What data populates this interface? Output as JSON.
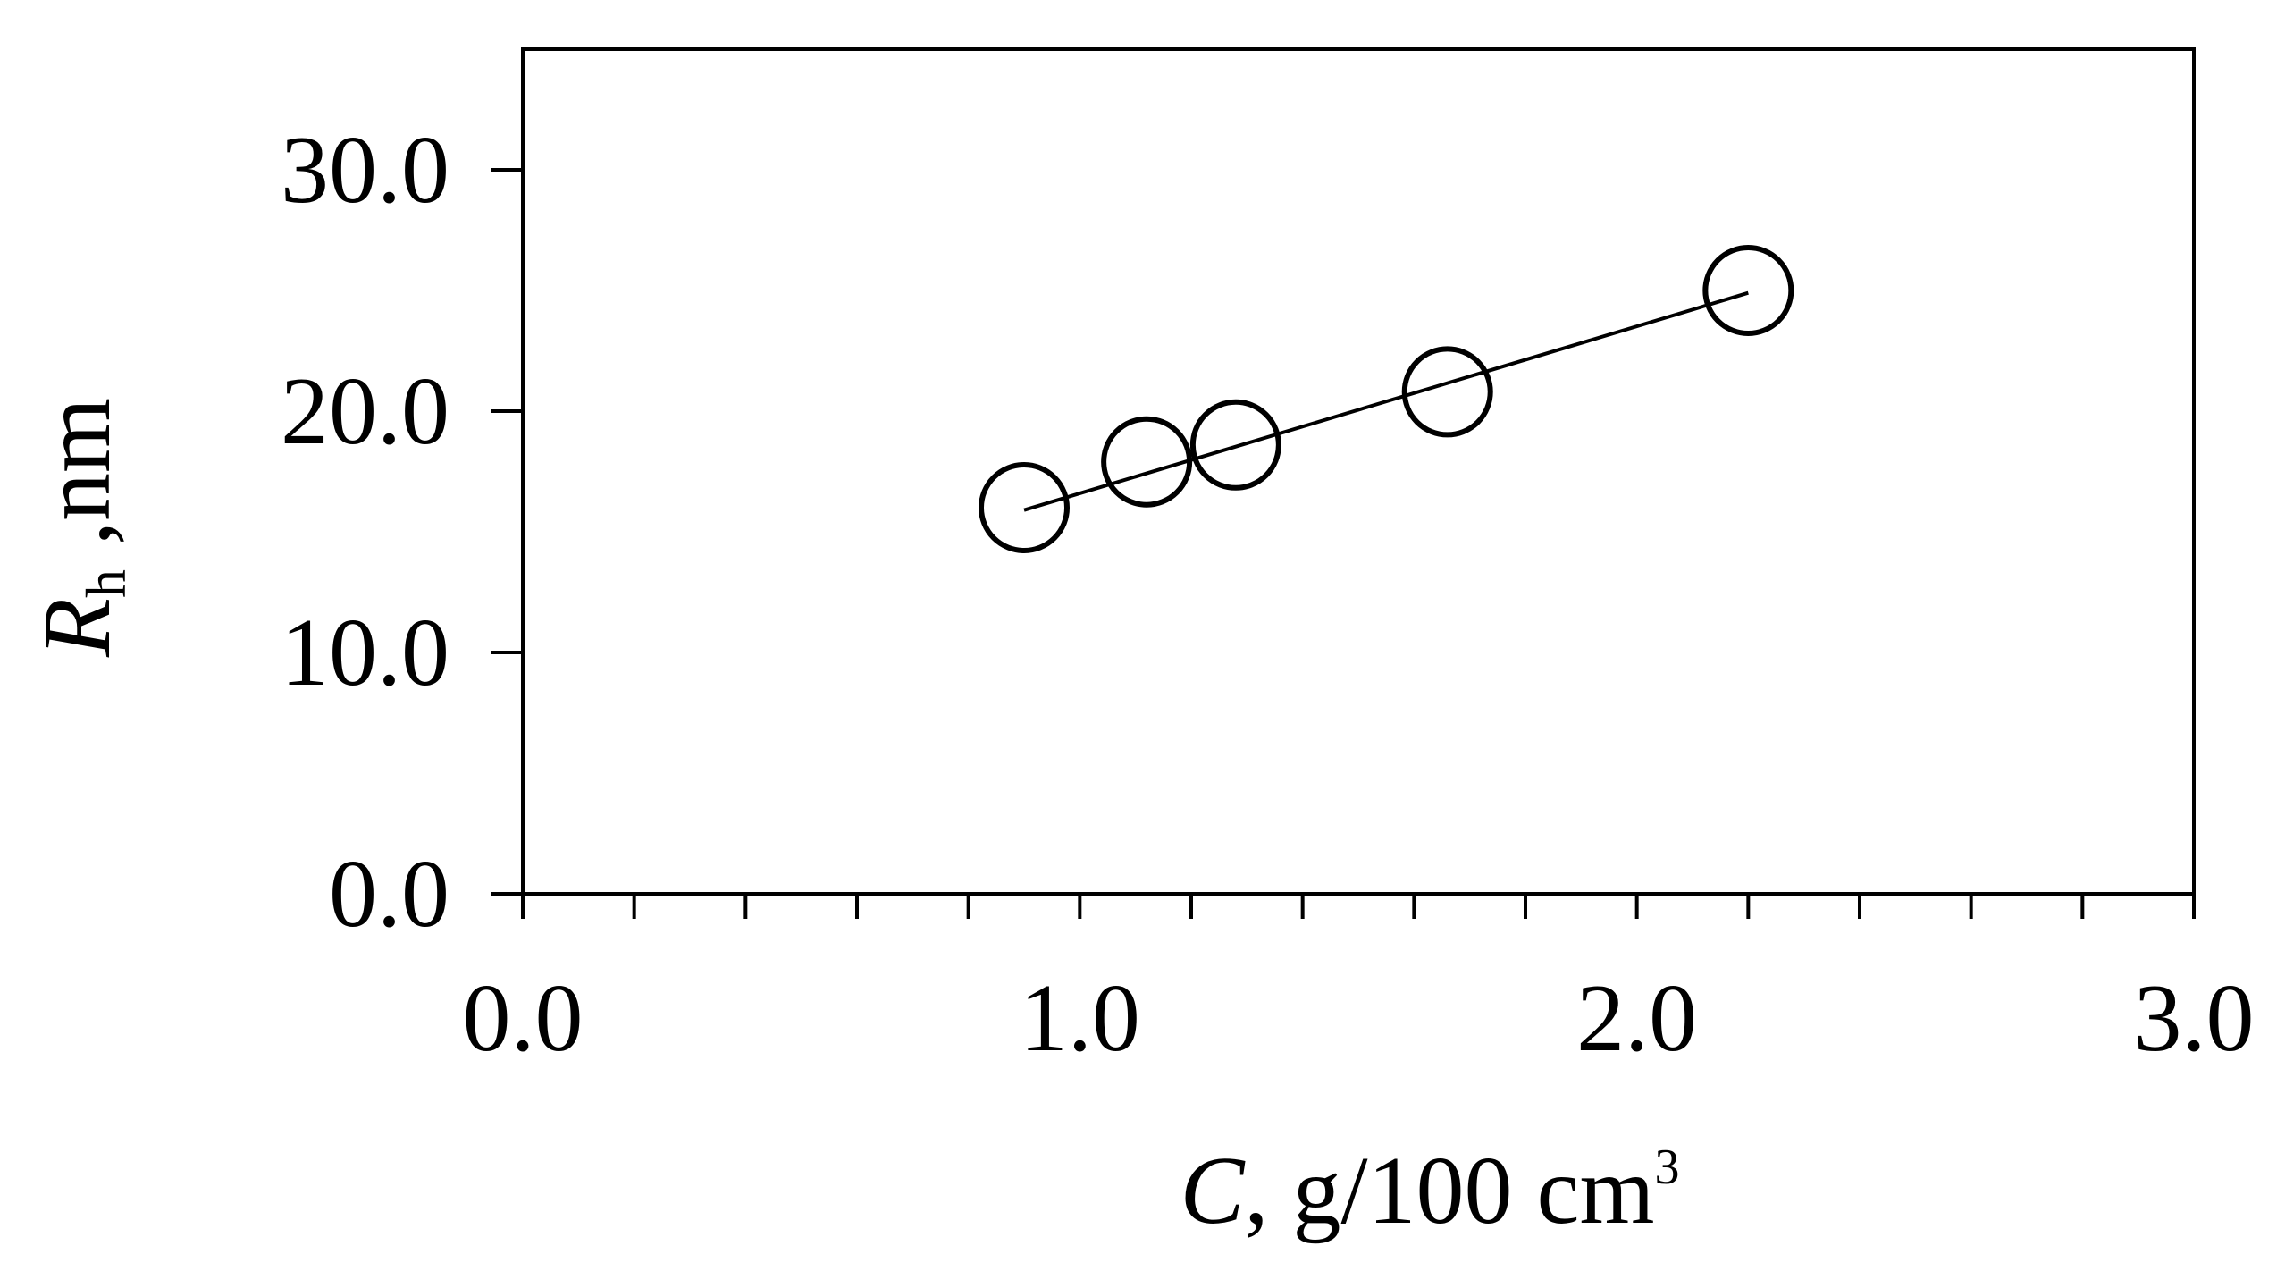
{
  "chart_data": {
    "type": "scatter",
    "xlabel": {
      "var": "C",
      "unit_prefix": ", g/100 cm",
      "unit_sup": "3"
    },
    "ylabel": {
      "var": "R",
      "sub": "h",
      "unit": " ,nm"
    },
    "xlim": [
      0.0,
      3.0
    ],
    "ylim": [
      0.0,
      35.0
    ],
    "x_ticks": [
      0.0,
      1.0,
      2.0,
      3.0
    ],
    "x_tick_labels": [
      "0.0",
      "1.0",
      "2.0",
      "3.0"
    ],
    "x_minor_step": 0.2,
    "y_ticks": [
      0.0,
      10.0,
      20.0,
      30.0
    ],
    "y_tick_labels": [
      "0.0",
      "10.0",
      "20.0",
      "30.0"
    ],
    "grid": false,
    "series": [
      {
        "marker": "open-circle",
        "x": [
          0.9,
          1.12,
          1.28,
          1.66,
          2.2
        ],
        "y": [
          16.0,
          17.9,
          18.6,
          20.8,
          25.0
        ]
      }
    ],
    "fit_line": {
      "x": [
        0.9,
        2.2
      ],
      "y": [
        15.9,
        24.9
      ]
    }
  }
}
